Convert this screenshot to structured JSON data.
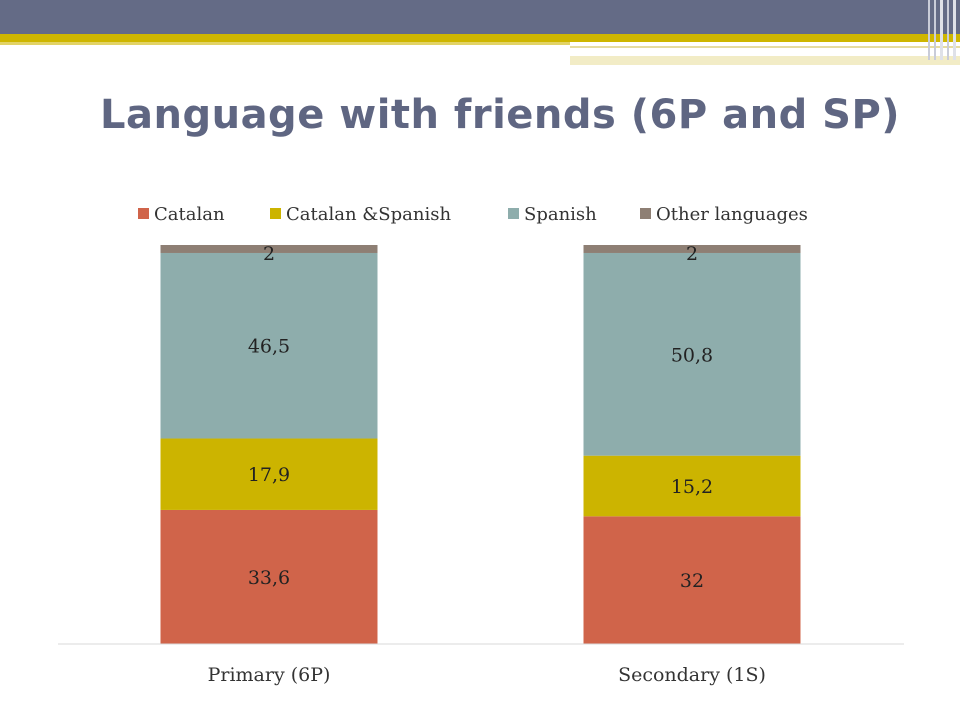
{
  "slide": {
    "title": "Language with friends (6P and SP)"
  },
  "colors": {
    "catalan": "#d0644a",
    "catalan_spanish": "#ccb400",
    "spanish": "#8eadac",
    "other": "#8e7f74",
    "header_band": "#646b86",
    "title": "#5f6682"
  },
  "chart_data": {
    "type": "bar",
    "stacked": true,
    "title": "",
    "xlabel": "",
    "ylabel": "",
    "ylim": [
      0,
      100
    ],
    "grid": false,
    "legend_position": "top",
    "categories": [
      "Primary (6P)",
      "Secondary (1S)"
    ],
    "series": [
      {
        "name": "Catalan",
        "values": [
          33.6,
          32
        ],
        "labels": [
          "33,6",
          "32"
        ],
        "color": "#d0644a"
      },
      {
        "name": "Catalan &Spanish",
        "values": [
          17.9,
          15.2
        ],
        "labels": [
          "17,9",
          "15,2"
        ],
        "color": "#ccb400"
      },
      {
        "name": "Spanish",
        "values": [
          46.5,
          50.8
        ],
        "labels": [
          "46,5",
          "50,8"
        ],
        "color": "#8eadac"
      },
      {
        "name": "Other languages",
        "values": [
          2,
          2
        ],
        "labels": [
          "2",
          "2"
        ],
        "color": "#8e7f74"
      }
    ]
  }
}
